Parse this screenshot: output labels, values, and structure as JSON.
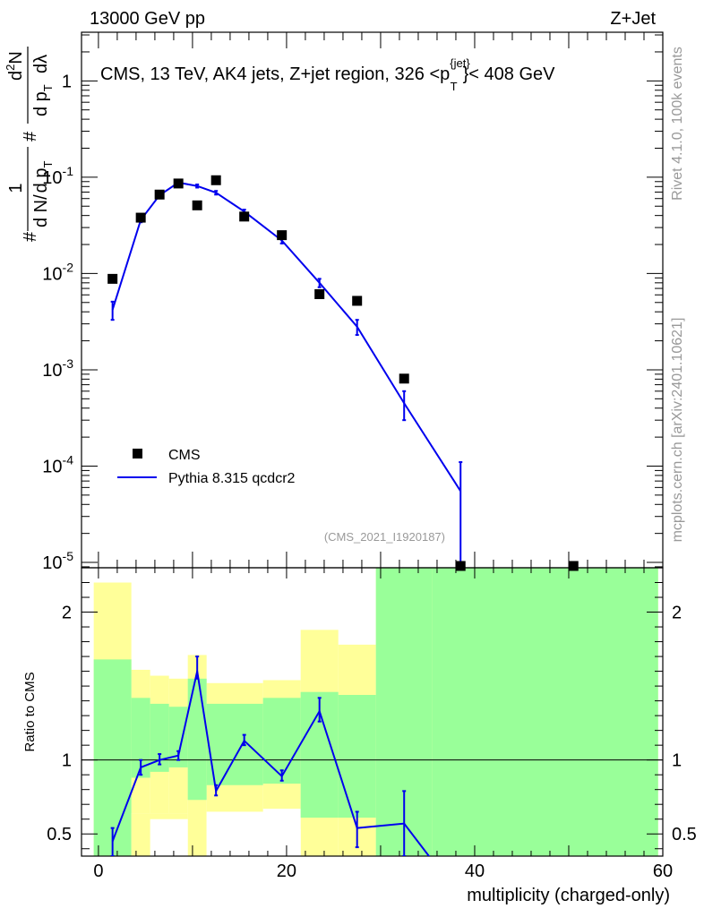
{
  "header": {
    "left": "13000 GeV pp",
    "right": "Z+Jet"
  },
  "side": {
    "top": "Rivet 4.1.0,  100k events",
    "bottom": "mcplots.cern.ch [arXiv:2401.10621]"
  },
  "chart_data": {
    "type": "scatter",
    "title": "CMS, 13 TeV, AK4 jets, Z+jet region, 326 <p",
    "title_sup": "{jet}",
    "title_sub": "T",
    "title_end": "}< 408 GeV",
    "xlabel": "multiplicity (charged-only)",
    "xlim": [
      -1.8,
      60
    ],
    "x_ticks": [
      "0",
      "20",
      "40",
      "60"
    ],
    "x_tick_values": [
      0,
      20,
      40,
      60
    ],
    "watermark": "(CMS_2021_I1920187)",
    "main": {
      "yscale": "log",
      "ylim": [
        8.8e-06,
        3.2
      ],
      "ylabel_parts": [
        "#",
        "1",
        "d N",
        "/",
        "d p",
        "T",
        "#",
        "d p",
        "T",
        "d",
        "2",
        "N",
        "d",
        "λ"
      ],
      "y_tick_labels": [
        {
          "base": "10",
          "exp": "-5",
          "value": 1e-05
        },
        {
          "base": "10",
          "exp": "-4",
          "value": 0.0001
        },
        {
          "base": "10",
          "exp": "-3",
          "value": 0.001
        },
        {
          "base": "10",
          "exp": "-2",
          "value": 0.01
        },
        {
          "base": "10",
          "exp": "-1",
          "value": 0.1
        },
        {
          "base": "1",
          "exp": "",
          "value": 1
        }
      ],
      "series": [
        {
          "name": "CMS",
          "kind": "markers",
          "color": "#000000",
          "x": [
            1.5,
            4.5,
            6.5,
            8.5,
            10.5,
            12.5,
            15.5,
            19.5,
            23.5,
            27.5,
            32.5,
            38.5,
            50.5
          ],
          "y": [
            0.0088,
            0.038,
            0.066,
            0.086,
            0.051,
            0.093,
            0.039,
            0.025,
            0.0061,
            0.0052,
            0.00081,
            8.2e-06,
            8.2e-06
          ]
        },
        {
          "name": "Pythia 8.315 qcdcr2",
          "kind": "line",
          "color": "#0000ee",
          "x": [
            1.5,
            4.5,
            6.5,
            8.5,
            10.5,
            12.5,
            15.5,
            19.5,
            23.5,
            27.5,
            32.5,
            38.5
          ],
          "y": [
            0.0042,
            0.036,
            0.065,
            0.088,
            0.081,
            0.069,
            0.044,
            0.022,
            0.008,
            0.0028,
            0.00045,
            5.5e-05
          ],
          "err_lo": [
            0.0033,
            0.034,
            0.062,
            0.085,
            0.078,
            0.066,
            0.042,
            0.0205,
            0.0072,
            0.0023,
            0.0003,
            8.8e-06
          ],
          "err_hi": [
            0.0051,
            0.038,
            0.068,
            0.091,
            0.084,
            0.072,
            0.046,
            0.0235,
            0.0088,
            0.0033,
            0.0006,
            0.00011
          ]
        }
      ],
      "legend": [
        {
          "label": "CMS",
          "kind": "marker"
        },
        {
          "label": "Pythia 8.315 qcdcr2",
          "kind": "line"
        }
      ]
    },
    "ratio": {
      "ylabel": "Ratio to CMS",
      "ylim": [
        0.35,
        2.3
      ],
      "y_ticks": [
        "0.5",
        "1",
        "2"
      ],
      "y_tick_values": [
        0.5,
        1,
        2
      ],
      "reference": 1,
      "bands": [
        {
          "x0": -0.5,
          "x1": 3.5,
          "green": [
            0.35,
            1.68
          ],
          "yellow": [
            0.35,
            2.2
          ]
        },
        {
          "x0": 3.5,
          "x1": 5.5,
          "green": [
            0.88,
            1.42
          ],
          "yellow": [
            0.64,
            1.61
          ]
        },
        {
          "x0": 5.5,
          "x1": 7.5,
          "green": [
            0.92,
            1.38
          ],
          "yellow": [
            0.64,
            1.57
          ]
        },
        {
          "x0": 7.5,
          "x1": 9.5,
          "green": [
            0.95,
            1.36
          ],
          "yellow": [
            0.64,
            1.55
          ]
        },
        {
          "x0": 9.5,
          "x1": 11.5,
          "green": [
            0.73,
            1.55
          ],
          "yellow": [
            0.35,
            1.71
          ]
        },
        {
          "x0": 11.5,
          "x1": 17.5,
          "green": [
            0.83,
            1.38
          ],
          "yellow": [
            0.65,
            1.52
          ]
        },
        {
          "x0": 17.5,
          "x1": 21.5,
          "green": [
            0.84,
            1.42
          ],
          "yellow": [
            0.67,
            1.54
          ]
        },
        {
          "x0": 21.5,
          "x1": 25.5,
          "green": [
            0.61,
            1.46
          ],
          "yellow": [
            0.35,
            1.88
          ]
        },
        {
          "x0": 25.5,
          "x1": 29.5,
          "green": [
            0.61,
            1.44
          ],
          "yellow": [
            0.35,
            1.78
          ]
        },
        {
          "x0": 29.5,
          "x1": 35.5,
          "green": [
            0.35,
            2.3
          ],
          "yellow": [
            0.35,
            2.3
          ]
        },
        {
          "x0": 35.5,
          "x1": 59.5,
          "green": [
            0.35,
            2.3
          ],
          "yellow": [
            0.35,
            2.3
          ]
        }
      ],
      "series": {
        "name": "Pythia 8.315 qcdcr2",
        "color": "#0000ee",
        "x": [
          1.5,
          4.5,
          6.5,
          8.5,
          10.5,
          12.5,
          15.5,
          19.5,
          23.5,
          27.5,
          32.5,
          35.5
        ],
        "y": [
          0.45,
          0.95,
          1.0,
          1.03,
          1.6,
          0.79,
          1.13,
          0.89,
          1.33,
          0.54,
          0.57,
          0.32
        ],
        "err_lo": [
          0.35,
          0.9,
          0.97,
          1.0,
          1.55,
          0.76,
          1.1,
          0.86,
          1.26,
          0.41,
          0.35,
          0.32
        ],
        "err_hi": [
          0.54,
          1.0,
          1.04,
          1.06,
          1.7,
          0.83,
          1.17,
          0.93,
          1.42,
          0.65,
          0.79,
          0.32
        ]
      }
    }
  }
}
